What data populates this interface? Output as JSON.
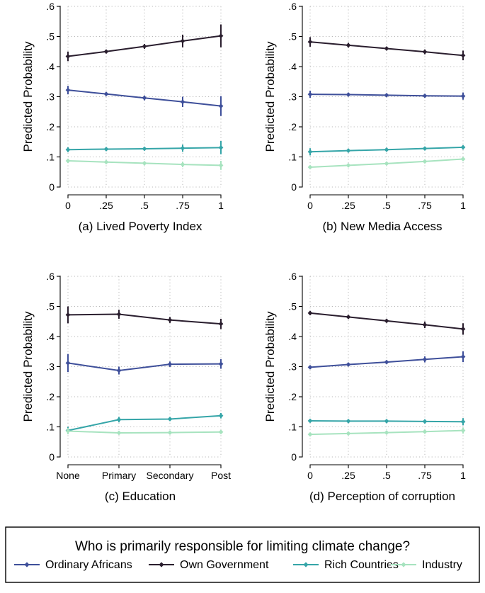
{
  "legend": {
    "title": "Who is primarily responsible for limiting climate change?",
    "items": [
      {
        "name": "Ordinary Africans",
        "color": "#3e4f9a"
      },
      {
        "name": "Own Government",
        "color": "#2a1e2e"
      },
      {
        "name": "Rich Countries",
        "color": "#35a5a8"
      },
      {
        "name": "Industry",
        "color": "#a7e3bf"
      }
    ]
  },
  "chart_data": [
    {
      "type": "line",
      "title": "(a) Lived Poverty Index",
      "xlabel": "(a) Lived Poverty Index",
      "ylabel": "Predicted Probability",
      "categories": [
        "0",
        ".25",
        ".5",
        ".75",
        "1"
      ],
      "yticks": [
        "0",
        ".1",
        ".2",
        ".3",
        ".4",
        ".5",
        ".6"
      ],
      "ylim": [
        0,
        0.6
      ],
      "series": [
        {
          "name": "Own Government",
          "values": [
            0.434,
            0.45,
            0.467,
            0.485,
            0.502
          ],
          "err": [
            0.016,
            0.006,
            0.008,
            0.021,
            0.038
          ]
        },
        {
          "name": "Ordinary Africans",
          "values": [
            0.322,
            0.309,
            0.296,
            0.283,
            0.269
          ],
          "err": [
            0.014,
            0.006,
            0.008,
            0.017,
            0.033
          ]
        },
        {
          "name": "Rich Countries",
          "values": [
            0.124,
            0.126,
            0.127,
            0.129,
            0.131
          ],
          "err": [
            0.008,
            0.004,
            0.005,
            0.012,
            0.022
          ]
        },
        {
          "name": "Industry",
          "values": [
            0.087,
            0.083,
            0.079,
            0.075,
            0.072
          ],
          "err": [
            0.007,
            0.004,
            0.004,
            0.009,
            0.015
          ]
        }
      ]
    },
    {
      "type": "line",
      "title": "(b) New Media Access",
      "xlabel": "(b) New Media Access",
      "ylabel": "Predicted Probability",
      "categories": [
        "0",
        ".25",
        ".5",
        ".75",
        "1"
      ],
      "yticks": [
        "0",
        ".1",
        ".2",
        ".3",
        ".4",
        ".5",
        ".6"
      ],
      "ylim": [
        0,
        0.6
      ],
      "series": [
        {
          "name": "Own Government",
          "values": [
            0.482,
            0.471,
            0.46,
            0.449,
            0.437
          ],
          "err": [
            0.016,
            0.008,
            0.006,
            0.008,
            0.016
          ]
        },
        {
          "name": "Ordinary Africans",
          "values": [
            0.308,
            0.307,
            0.305,
            0.303,
            0.302
          ],
          "err": [
            0.012,
            0.006,
            0.005,
            0.006,
            0.012
          ]
        },
        {
          "name": "Rich Countries",
          "values": [
            0.117,
            0.121,
            0.124,
            0.128,
            0.132
          ],
          "err": [
            0.012,
            0.005,
            0.004,
            0.005,
            0.007
          ]
        },
        {
          "name": "Industry",
          "values": [
            0.066,
            0.072,
            0.078,
            0.085,
            0.093
          ],
          "err": [
            0.005,
            0.003,
            0.003,
            0.004,
            0.006
          ]
        }
      ]
    },
    {
      "type": "line",
      "title": "(c) Education",
      "xlabel": "(c) Education",
      "ylabel": "Predicted Probability",
      "categories": [
        "None",
        "Primary",
        "Secondary",
        "Post"
      ],
      "yticks": [
        "0",
        ".1",
        ".2",
        ".3",
        ".4",
        ".5",
        ".6"
      ],
      "ylim": [
        0,
        0.6
      ],
      "series": [
        {
          "name": "Own Government",
          "values": [
            0.472,
            0.474,
            0.455,
            0.442
          ],
          "err": [
            0.028,
            0.015,
            0.01,
            0.017
          ]
        },
        {
          "name": "Ordinary Africans",
          "values": [
            0.312,
            0.287,
            0.308,
            0.309
          ],
          "err": [
            0.03,
            0.013,
            0.009,
            0.016
          ]
        },
        {
          "name": "Rich Countries",
          "values": [
            0.088,
            0.124,
            0.126,
            0.137
          ],
          "err": [
            0.012,
            0.009,
            0.005,
            0.009
          ]
        },
        {
          "name": "Industry",
          "values": [
            0.086,
            0.08,
            0.081,
            0.083
          ],
          "err": [
            0.01,
            0.006,
            0.004,
            0.006
          ]
        }
      ]
    },
    {
      "type": "line",
      "title": "(d) Perception of corruption",
      "xlabel": "(d) Perception of corruption",
      "ylabel": "Predicted Probability",
      "categories": [
        "0",
        ".25",
        ".5",
        ".75",
        "1"
      ],
      "yticks": [
        "0",
        ".1",
        ".2",
        ".3",
        ".4",
        ".5",
        ".6"
      ],
      "ylim": [
        0,
        0.6
      ],
      "series": [
        {
          "name": "Own Government",
          "values": [
            0.478,
            0.465,
            0.452,
            0.439,
            0.425
          ],
          "err": [
            0.007,
            0.004,
            0.005,
            0.011,
            0.019
          ]
        },
        {
          "name": "Ordinary Africans",
          "values": [
            0.298,
            0.307,
            0.315,
            0.324,
            0.333
          ],
          "err": [
            0.006,
            0.004,
            0.004,
            0.01,
            0.018
          ]
        },
        {
          "name": "Rich Countries",
          "values": [
            0.12,
            0.119,
            0.119,
            0.118,
            0.117
          ],
          "err": [
            0.004,
            0.003,
            0.003,
            0.007,
            0.012
          ]
        },
        {
          "name": "Industry",
          "values": [
            0.075,
            0.078,
            0.081,
            0.084,
            0.088
          ],
          "err": [
            0.004,
            0.002,
            0.003,
            0.006,
            0.01
          ]
        }
      ]
    }
  ]
}
